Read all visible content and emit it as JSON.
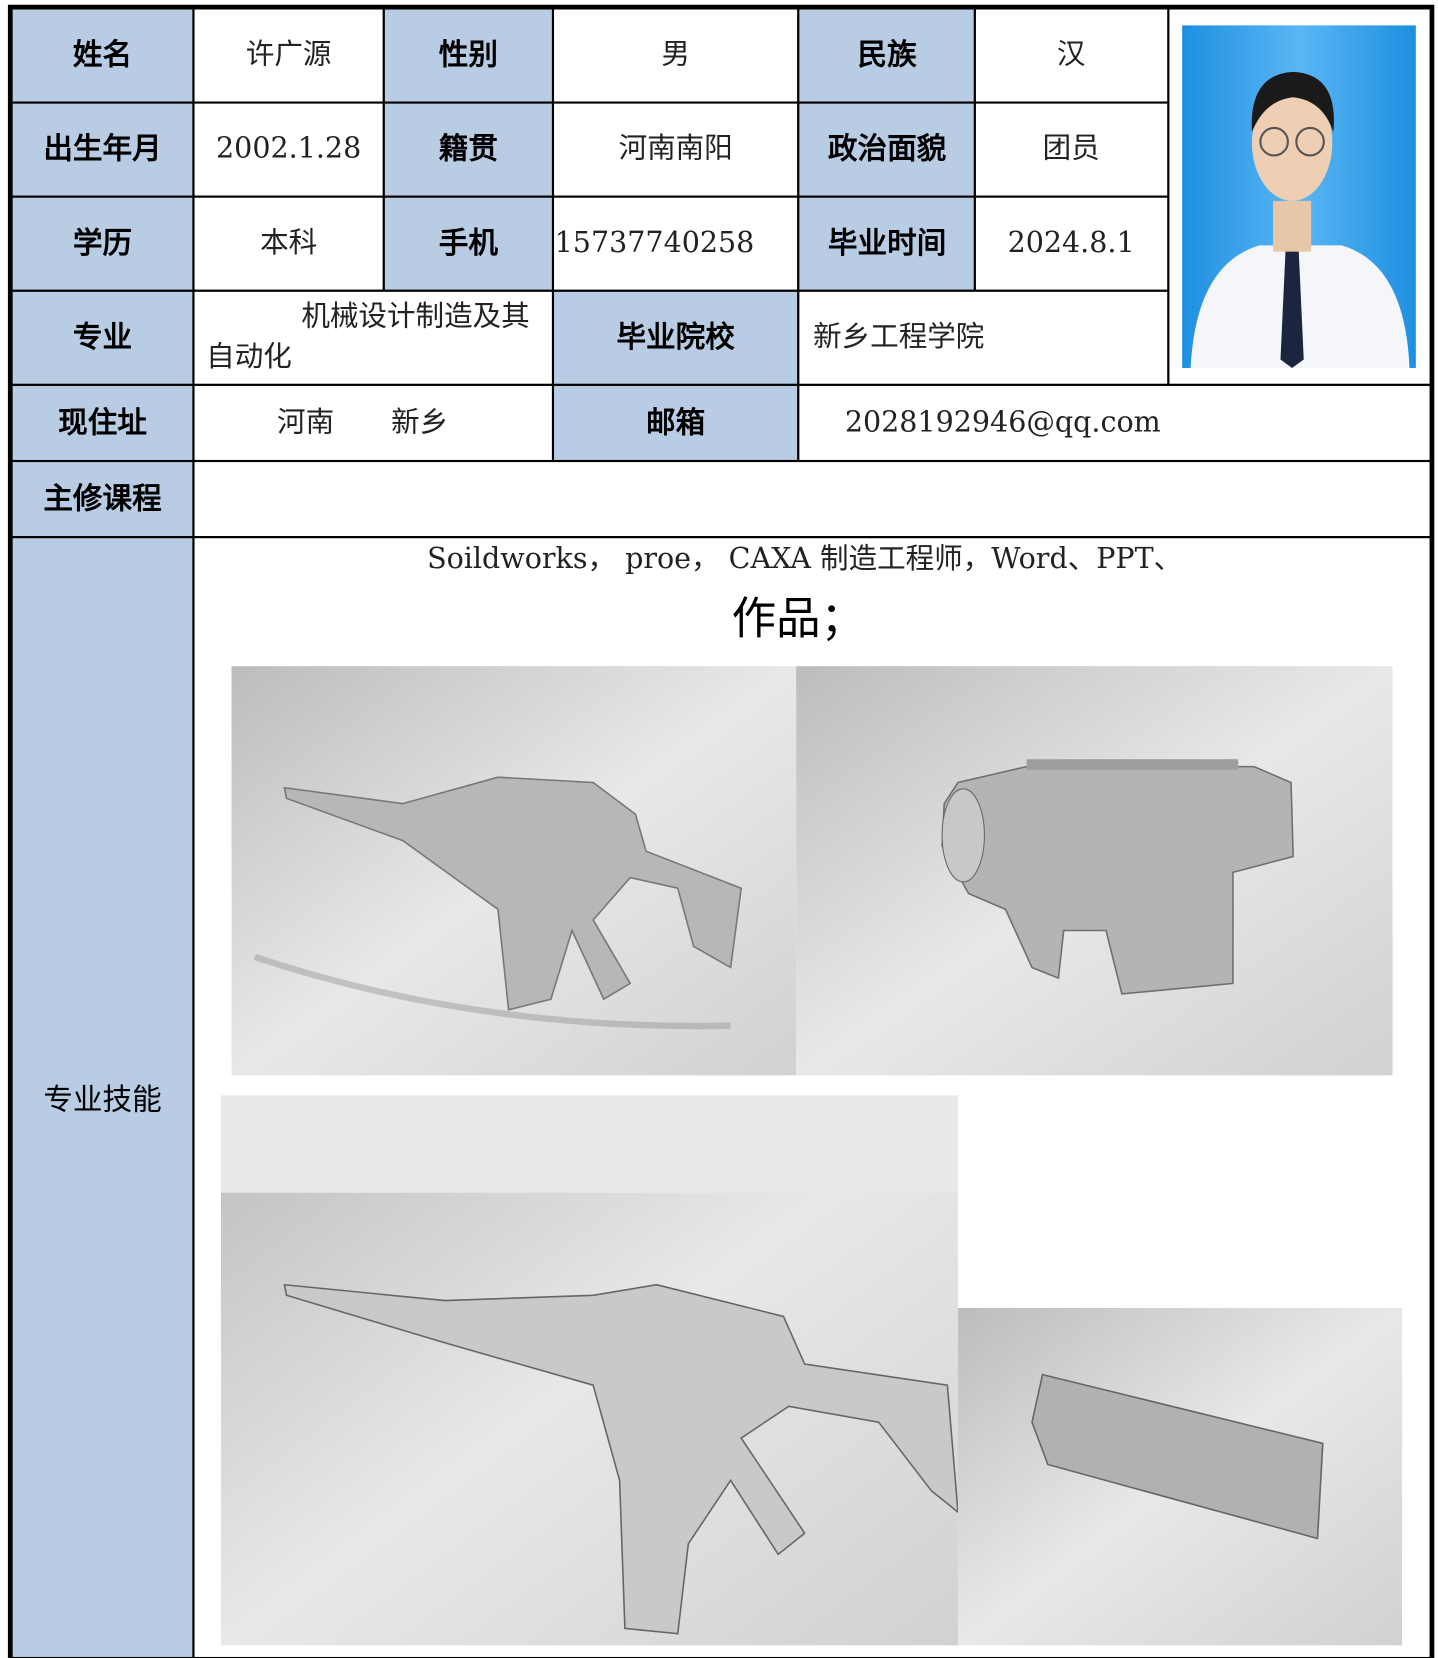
{
  "table": {
    "rows": [
      [
        "姓名",
        "许广源",
        "性别",
        "男",
        "民族",
        "汉"
      ],
      [
        "出生年月",
        "2002.1.28",
        "籍贯",
        "河南南阳",
        "政治面貌",
        "团员"
      ],
      [
        "学历",
        "本科",
        "手机",
        "15737740258",
        "毕业时间",
        "2024.8.1"
      ],
      [
        "专业",
        "机械设计制造及其自动化",
        "毕业院校",
        "新乡工程学院"
      ],
      [
        "现住址",
        "河南　　新乡",
        "邮箱",
        "2028192946@qq.com"
      ],
      [
        "主修课程"
      ],
      [
        "专业技能",
        "Soildworks， proe， CAXA 制造工程师，Word、PPT、",
        "作品；"
      ]
    ]
  }
}
